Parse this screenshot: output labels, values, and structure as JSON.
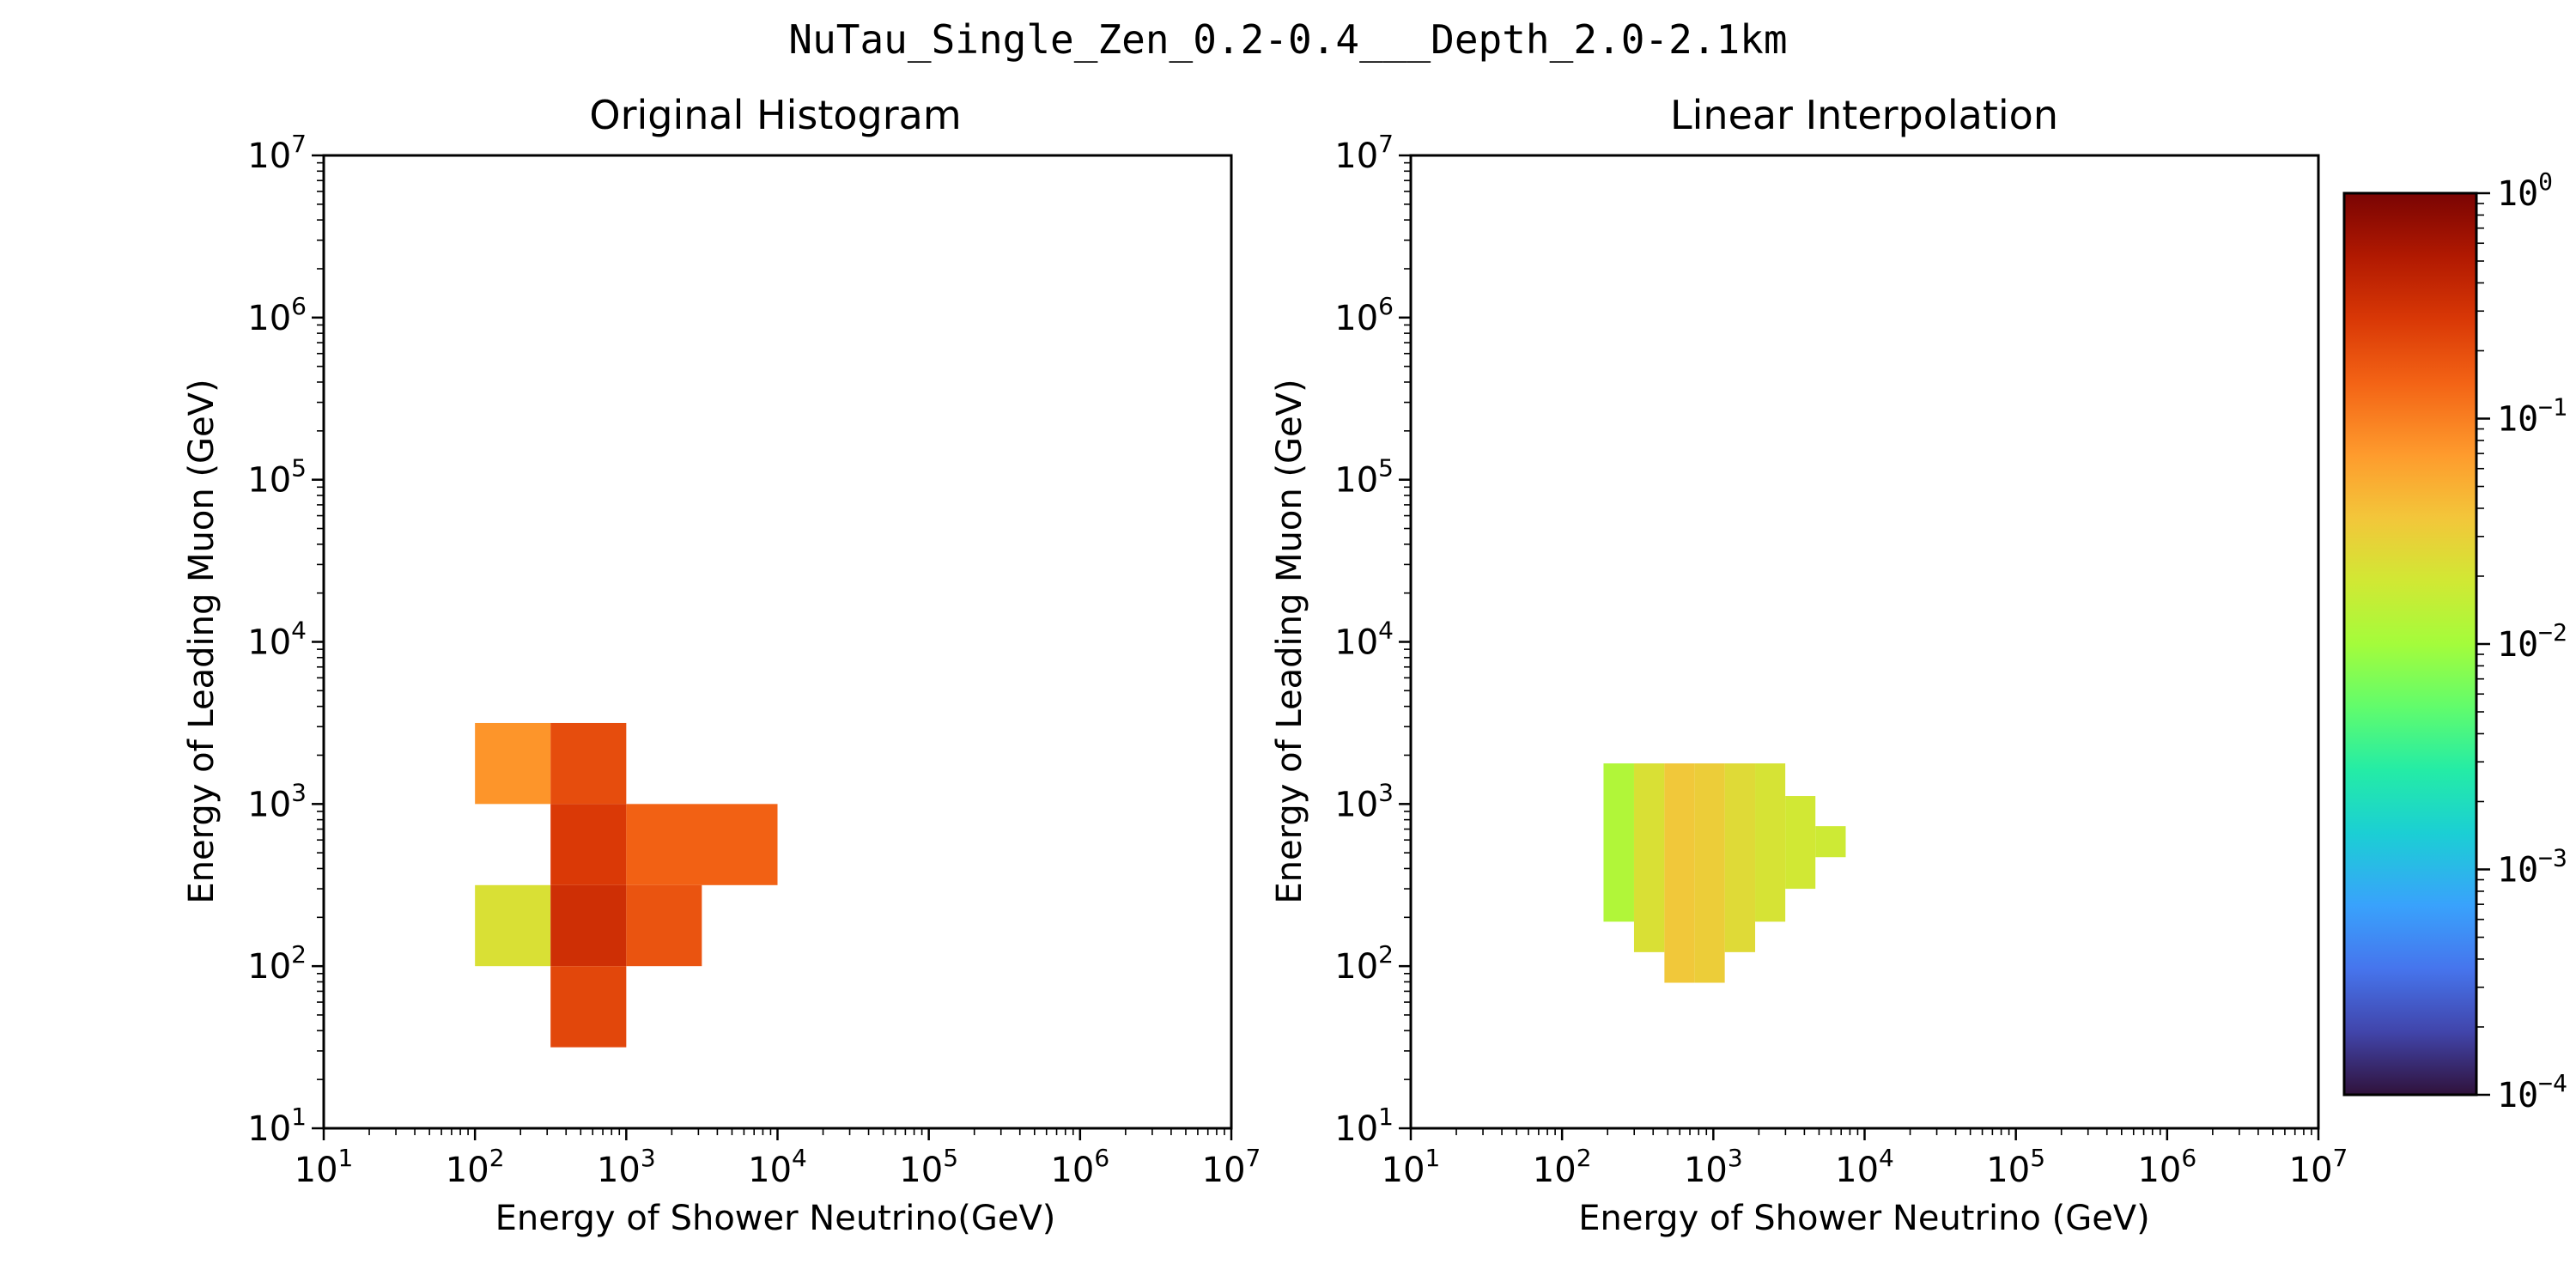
{
  "figure": {
    "suptitle": "NuTau_Single_Zen_0.2-0.4___Depth_2.0-2.1km"
  },
  "colorbar": {
    "scale": "log",
    "range": [
      0.0001,
      1
    ],
    "ticks": [
      {
        "base": "10",
        "exp": "0",
        "value": 1
      },
      {
        "base": "10",
        "exp": "−1",
        "value": 0.1
      },
      {
        "base": "10",
        "exp": "−2",
        "value": 0.01
      },
      {
        "base": "10",
        "exp": "−3",
        "value": 0.001
      },
      {
        "base": "10",
        "exp": "−4",
        "value": 0.0001
      }
    ],
    "colormap": "turbo",
    "stops": [
      {
        "pos": 0.0,
        "color": "#30123b"
      },
      {
        "pos": 0.07,
        "color": "#4145ab"
      },
      {
        "pos": 0.14,
        "color": "#4675ed"
      },
      {
        "pos": 0.21,
        "color": "#39a2fc"
      },
      {
        "pos": 0.29,
        "color": "#1bcfd4"
      },
      {
        "pos": 0.36,
        "color": "#24eca6"
      },
      {
        "pos": 0.43,
        "color": "#61fc6c"
      },
      {
        "pos": 0.5,
        "color": "#a4fc3b"
      },
      {
        "pos": 0.57,
        "color": "#d1e834"
      },
      {
        "pos": 0.64,
        "color": "#f3c63a"
      },
      {
        "pos": 0.71,
        "color": "#fe9b2d"
      },
      {
        "pos": 0.79,
        "color": "#f36315"
      },
      {
        "pos": 0.86,
        "color": "#d93806"
      },
      {
        "pos": 0.93,
        "color": "#b11901"
      },
      {
        "pos": 1.0,
        "color": "#7a0403"
      }
    ]
  },
  "chart_data": [
    {
      "type": "heatmap",
      "title": "Original Histogram",
      "xlabel": "Energy of Shower Neutrino(GeV)",
      "ylabel": "Energy of Leading Muon (GeV)",
      "xscale": "log",
      "yscale": "log",
      "xlim": [
        10,
        10000000
      ],
      "ylim": [
        10,
        10000000
      ],
      "xticks": [
        {
          "base": "10",
          "exp": "1"
        },
        {
          "base": "10",
          "exp": "2"
        },
        {
          "base": "10",
          "exp": "3"
        },
        {
          "base": "10",
          "exp": "4"
        },
        {
          "base": "10",
          "exp": "5"
        },
        {
          "base": "10",
          "exp": "6"
        },
        {
          "base": "10",
          "exp": "7"
        }
      ],
      "yticks": [
        {
          "base": "10",
          "exp": "1"
        },
        {
          "base": "10",
          "exp": "2"
        },
        {
          "base": "10",
          "exp": "3"
        },
        {
          "base": "10",
          "exp": "4"
        },
        {
          "base": "10",
          "exp": "5"
        },
        {
          "base": "10",
          "exp": "6"
        },
        {
          "base": "10",
          "exp": "7"
        }
      ],
      "cells": [
        {
          "x0": 100,
          "x1": 316,
          "y0": 1000,
          "y1": 3160,
          "value": 0.075
        },
        {
          "x0": 316,
          "x1": 1000,
          "y0": 1000,
          "y1": 3160,
          "value": 0.2
        },
        {
          "x0": 316,
          "x1": 1000,
          "y0": 316,
          "y1": 1000,
          "value": 0.27
        },
        {
          "x0": 1000,
          "x1": 10000,
          "y0": 316,
          "y1": 1000,
          "value": 0.15
        },
        {
          "x0": 100,
          "x1": 316,
          "y0": 100,
          "y1": 316,
          "value": 0.022
        },
        {
          "x0": 316,
          "x1": 1000,
          "y0": 100,
          "y1": 316,
          "value": 0.33
        },
        {
          "x0": 1000,
          "x1": 3160,
          "y0": 100,
          "y1": 316,
          "value": 0.18
        },
        {
          "x0": 316,
          "x1": 1000,
          "y0": 31.6,
          "y1": 100,
          "value": 0.22
        }
      ]
    },
    {
      "type": "heatmap",
      "title": "Linear Interpolation",
      "xlabel": "Energy of Shower Neutrino (GeV)",
      "ylabel": "Energy of Leading Muon (GeV)",
      "xscale": "log",
      "yscale": "log",
      "xlim": [
        10,
        10000000
      ],
      "ylim": [
        10,
        10000000
      ],
      "xticks": [
        {
          "base": "10",
          "exp": "1"
        },
        {
          "base": "10",
          "exp": "2"
        },
        {
          "base": "10",
          "exp": "3"
        },
        {
          "base": "10",
          "exp": "4"
        },
        {
          "base": "10",
          "exp": "5"
        },
        {
          "base": "10",
          "exp": "6"
        },
        {
          "base": "10",
          "exp": "7"
        }
      ],
      "yticks": [
        {
          "base": "10",
          "exp": "1"
        },
        {
          "base": "10",
          "exp": "2"
        },
        {
          "base": "10",
          "exp": "3"
        },
        {
          "base": "10",
          "exp": "4"
        },
        {
          "base": "10",
          "exp": "5"
        },
        {
          "base": "10",
          "exp": "6"
        },
        {
          "base": "10",
          "exp": "7"
        }
      ],
      "cells": [
        {
          "x0": 188,
          "x1": 299,
          "y0": 188,
          "y1": 1780,
          "value": 0.012
        },
        {
          "x0": 299,
          "x1": 475,
          "y0": 122,
          "y1": 1780,
          "value": 0.022
        },
        {
          "x0": 475,
          "x1": 750,
          "y0": 79,
          "y1": 1780,
          "value": 0.035
        },
        {
          "x0": 750,
          "x1": 1190,
          "y0": 79,
          "y1": 1780,
          "value": 0.032
        },
        {
          "x0": 1190,
          "x1": 1890,
          "y0": 122,
          "y1": 1780,
          "value": 0.025
        },
        {
          "x0": 1890,
          "x1": 2990,
          "y0": 188,
          "y1": 1780,
          "value": 0.021
        },
        {
          "x0": 2990,
          "x1": 4730,
          "y0": 300,
          "y1": 1120,
          "value": 0.019
        },
        {
          "x0": 4730,
          "x1": 7500,
          "y0": 470,
          "y1": 730,
          "value": 0.018
        }
      ]
    }
  ]
}
